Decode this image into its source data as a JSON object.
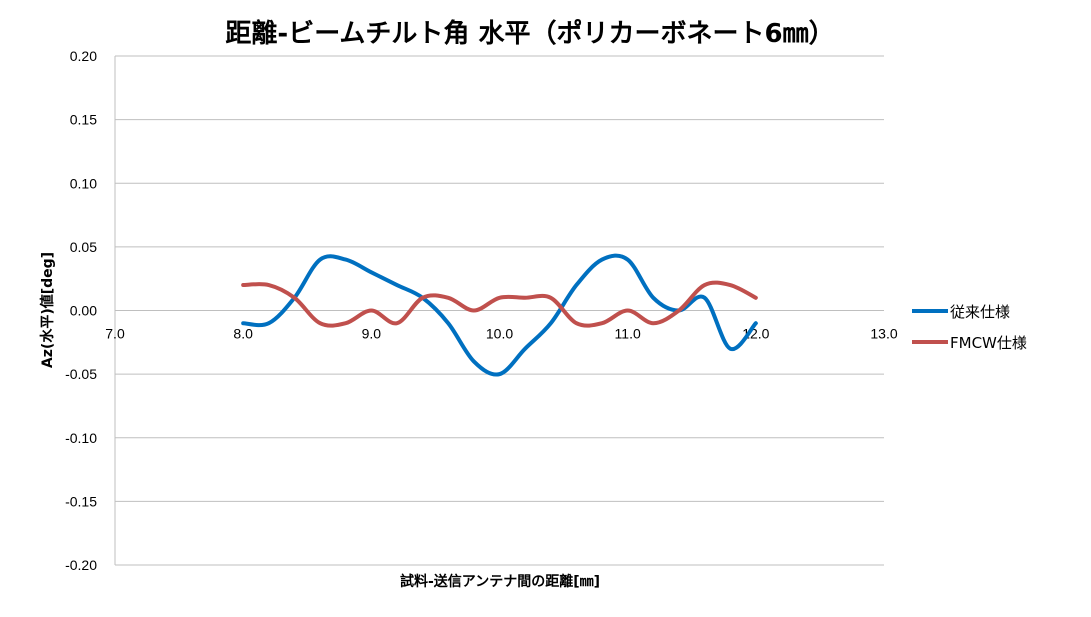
{
  "chart_data": {
    "type": "line",
    "title": "距離-ビームチルト角 水平（ポリカーボネート6㎜）",
    "xlabel": "試料-送信アンテナ間の距離[㎜]",
    "ylabel": "Az(水平)値[deg]",
    "xlim": [
      7.0,
      13.0
    ],
    "ylim": [
      -0.2,
      0.2
    ],
    "x_ticks": [
      "7.0",
      "8.0",
      "9.0",
      "10.0",
      "11.0",
      "12.0",
      "13.0"
    ],
    "y_ticks": [
      "0.20",
      "0.15",
      "0.10",
      "0.05",
      "0.00",
      "-0.05",
      "-0.10",
      "-0.15",
      "-0.20"
    ],
    "grid": "horizontal",
    "legend_position": "right",
    "series": [
      {
        "name": "従来仕様",
        "color": "#0070C0",
        "x": [
          8.0,
          8.2,
          8.4,
          8.6,
          8.8,
          9.0,
          9.2,
          9.4,
          9.6,
          9.8,
          10.0,
          10.2,
          10.4,
          10.6,
          10.8,
          11.0,
          11.2,
          11.4,
          11.6,
          11.8,
          12.0
        ],
        "y": [
          -0.01,
          -0.01,
          0.01,
          0.04,
          0.04,
          0.03,
          0.02,
          0.01,
          -0.01,
          -0.04,
          -0.05,
          -0.03,
          -0.01,
          0.02,
          0.04,
          0.04,
          0.01,
          0.0,
          0.01,
          -0.03,
          -0.01
        ]
      },
      {
        "name": "FMCW仕様",
        "color": "#C0504D",
        "x": [
          8.0,
          8.2,
          8.4,
          8.6,
          8.8,
          9.0,
          9.2,
          9.4,
          9.6,
          9.8,
          10.0,
          10.2,
          10.4,
          10.6,
          10.8,
          11.0,
          11.2,
          11.4,
          11.6,
          11.8,
          12.0
        ],
        "y": [
          0.02,
          0.02,
          0.01,
          -0.01,
          -0.01,
          0.0,
          -0.01,
          0.01,
          0.01,
          0.0,
          0.01,
          0.01,
          0.01,
          -0.01,
          -0.01,
          0.0,
          -0.01,
          0.0,
          0.02,
          0.02,
          0.01
        ]
      }
    ]
  }
}
